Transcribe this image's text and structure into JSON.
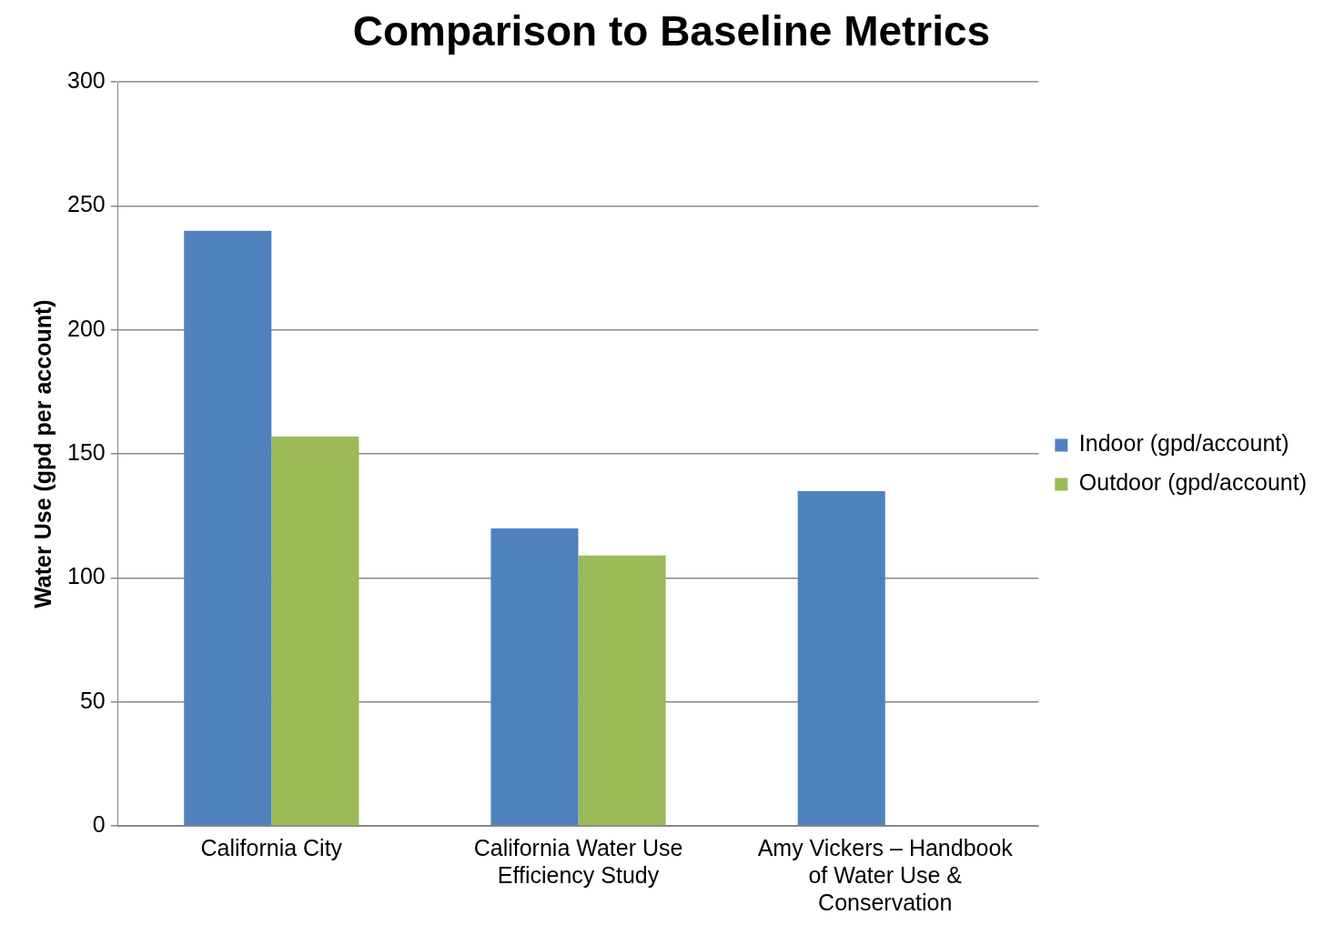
{
  "chart_data": {
    "type": "bar",
    "title": "Comparison to Baseline Metrics",
    "ylabel": "Water Use (gpd per account)",
    "categories": [
      "California City",
      "California Water Use Efficiency Study",
      "Amy Vickers – Handbook of Water Use & Conservation"
    ],
    "series": [
      {
        "name": "Indoor (gpd/account)",
        "color": "#4f81bd",
        "values": [
          240,
          120,
          135
        ]
      },
      {
        "name": "Outdoor (gpd/account)",
        "color": "#9bbb59",
        "values": [
          157,
          109,
          null
        ]
      }
    ],
    "ylim": [
      0,
      300
    ],
    "yticks": [
      0,
      50,
      100,
      150,
      200,
      250,
      300
    ],
    "grid": "y",
    "legend": "right"
  }
}
